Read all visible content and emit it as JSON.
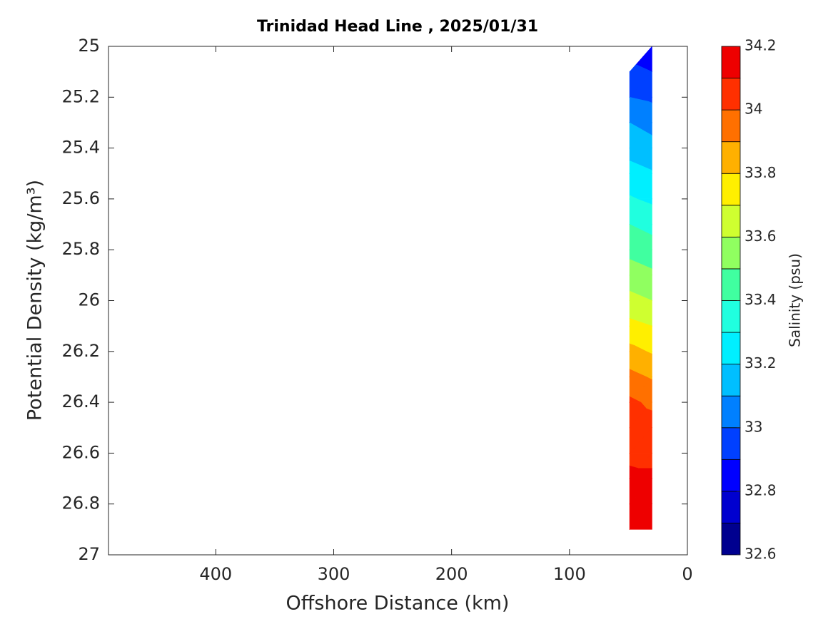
{
  "chart_data": {
    "type": "contour",
    "title": "Trinidad Head Line , 2025/01/31",
    "xlabel": "Offshore Distance (km)",
    "ylabel": "Potential Density (kg/m³)",
    "colorbar_label": "Salinity (psu)",
    "xlim": [
      491,
      0
    ],
    "xticks": [
      400,
      300,
      200,
      100,
      0
    ],
    "ylim": [
      25,
      27
    ],
    "yticks": [
      25,
      25.2,
      25.4,
      25.6,
      25.8,
      26,
      26.2,
      26.4,
      26.6,
      26.8,
      27
    ],
    "x": [
      49,
      30
    ],
    "y": [
      25,
      25.1,
      25.2,
      25.3,
      25.4,
      25.5,
      25.6,
      25.7,
      25.8,
      25.9,
      26,
      26.1,
      26.2,
      26.3,
      26.4,
      26.5,
      26.6,
      26.7,
      26.8,
      26.9
    ],
    "z": [
      [
        null,
        32.85
      ],
      [
        32.92,
        32.9
      ],
      [
        33.0,
        32.98
      ],
      [
        33.1,
        33.07
      ],
      [
        33.16,
        33.13
      ],
      [
        33.24,
        33.21
      ],
      [
        33.31,
        33.28
      ],
      [
        33.4,
        33.37
      ],
      [
        33.47,
        33.44
      ],
      [
        33.55,
        33.52
      ],
      [
        33.63,
        33.6
      ],
      [
        33.73,
        33.7
      ],
      [
        33.83,
        33.79
      ],
      [
        33.93,
        33.89
      ],
      [
        34.02,
        33.98
      ],
      [
        34.06,
        34.04
      ],
      [
        34.08,
        34.07
      ],
      [
        34.12,
        34.12
      ],
      [
        34.15,
        34.15
      ],
      [
        34.18,
        34.18
      ]
    ],
    "levels": [
      32.6,
      32.7,
      32.8,
      32.9,
      33,
      33.1,
      33.2,
      33.3,
      33.4,
      33.5,
      33.6,
      33.7,
      33.8,
      33.9,
      34,
      34.1,
      34.2
    ],
    "colors": [
      "#00008f",
      "#0000cf",
      "#0000ff",
      "#0040ff",
      "#0080ff",
      "#00bfff",
      "#00efff",
      "#20ffdf",
      "#40ffa0",
      "#90ff60",
      "#cfff30",
      "#ffef00",
      "#ffb000",
      "#ff7000",
      "#ff3000",
      "#ee0000",
      "#a80000"
    ],
    "cticks": [
      32.6,
      32.8,
      33,
      33.2,
      33.4,
      33.6,
      33.8,
      34,
      34.2
    ]
  }
}
